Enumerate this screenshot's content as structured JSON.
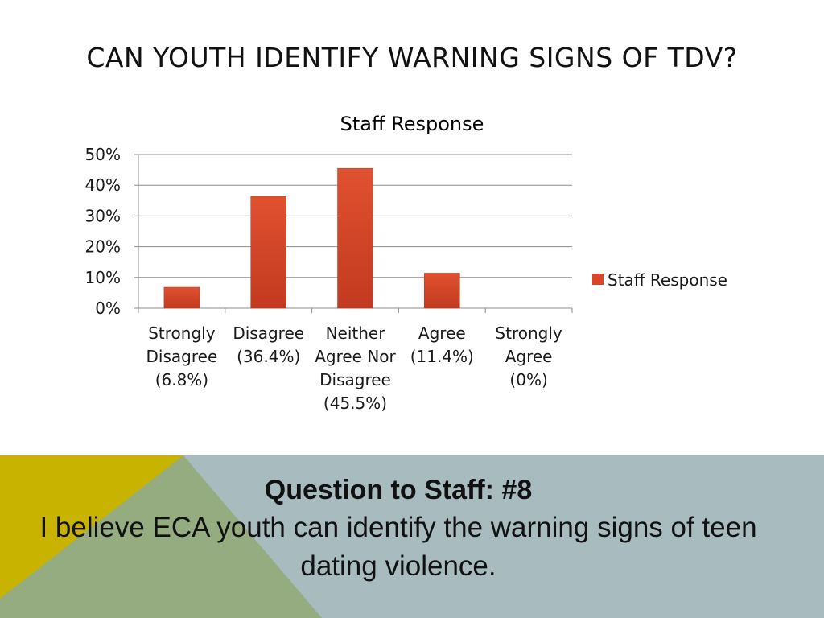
{
  "slide": {
    "title": "CAN YOUTH IDENTIFY WARNING SIGNS OF TDV?"
  },
  "chart_data": {
    "type": "bar",
    "title": "Staff Response",
    "xlabel": "",
    "ylabel": "",
    "ylim": [
      0,
      50
    ],
    "yticks": [
      "0%",
      "10%",
      "20%",
      "30%",
      "40%",
      "50%"
    ],
    "categories": [
      [
        "Strongly",
        "Disagree",
        "(6.8%)"
      ],
      [
        "Disagree",
        "(36.4%)"
      ],
      [
        "Neither",
        "Agree Nor",
        "Disagree",
        "(45.5%)"
      ],
      [
        "Agree",
        "(11.4%)"
      ],
      [
        "Strongly",
        "Agree",
        "(0%)"
      ]
    ],
    "series": [
      {
        "name": "Staff Response",
        "values": [
          6.8,
          36.4,
          45.5,
          11.4,
          0
        ],
        "color": "#d9442a"
      }
    ],
    "grid": true,
    "legend": "right"
  },
  "caption": {
    "heading": "Question to Staff: #8",
    "body": "I believe ECA youth can identify the warning signs of teen dating violence."
  },
  "colors": {
    "bar": "#d9442a",
    "bar_dark": "#b8331c",
    "band_blue": "#a8bcc0",
    "band_yellow": "#c8b400",
    "band_green": "#95ac80"
  }
}
